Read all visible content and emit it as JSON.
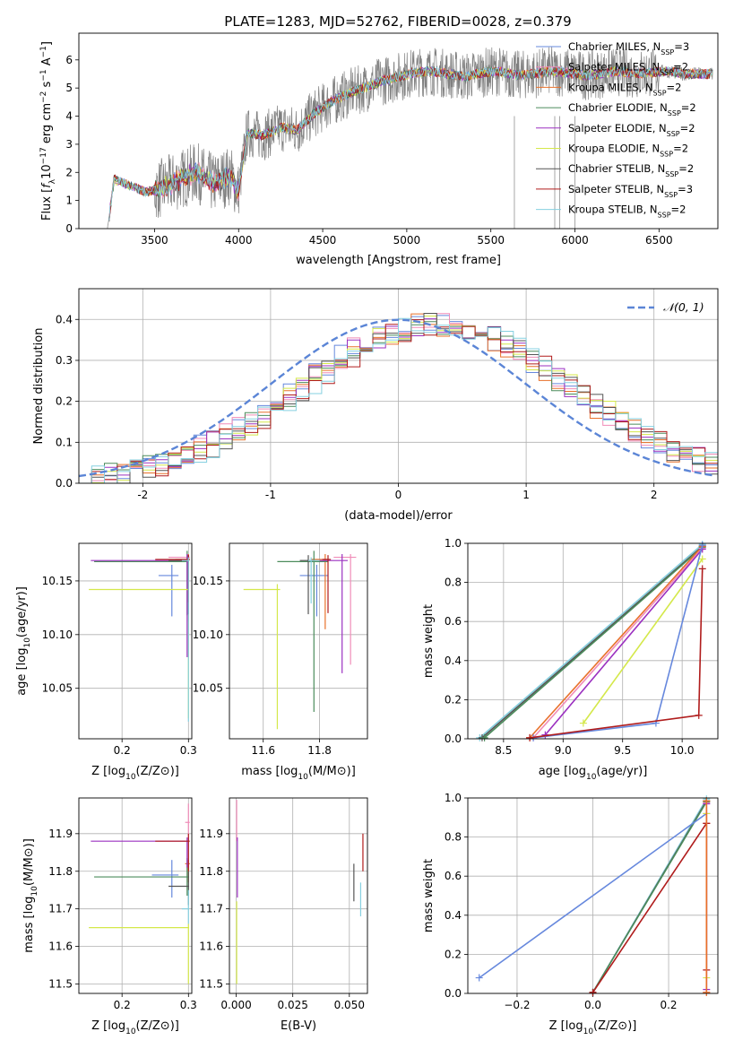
{
  "figure": {
    "title": "PLATE=1283, MJD=52762, FIBERID=0028, z=0.379"
  },
  "series_styles": [
    {
      "name": "Chabrier MILES, N_SSP=3",
      "label_main": "Chabrier MILES, N",
      "label_sub": "SSP",
      "label_tail": "=3",
      "color": "#6688dd"
    },
    {
      "name": "Salpeter MILES, N_SSP=2",
      "label_main": "Salpeter MILES, N",
      "label_sub": "SSP",
      "label_tail": "=2",
      "color": "#f08cb8"
    },
    {
      "name": "Kroupa MILES, N_SSP=2",
      "label_main": "Kroupa MILES, N",
      "label_sub": "SSP",
      "label_tail": "=2",
      "color": "#e8702a"
    },
    {
      "name": "Chabrier ELODIE, N_SSP=2",
      "label_main": "Chabrier ELODIE, N",
      "label_sub": "SSP",
      "label_tail": "=2",
      "color": "#4c8c5c"
    },
    {
      "name": "Salpeter ELODIE, N_SSP=2",
      "label_main": "Salpeter ELODIE, N",
      "label_sub": "SSP",
      "label_tail": "=2",
      "color": "#9b30c0"
    },
    {
      "name": "Kroupa ELODIE, N_SSP=2",
      "label_main": "Kroupa ELODIE, N",
      "label_sub": "SSP",
      "label_tail": "=2",
      "color": "#d4e84a"
    },
    {
      "name": "Chabrier STELIB, N_SSP=2",
      "label_main": "Chabrier STELIB, N",
      "label_sub": "SSP",
      "label_tail": "=2",
      "color": "#555555"
    },
    {
      "name": "Salpeter STELIB, N_SSP=3",
      "label_main": "Salpeter STELIB, N",
      "label_sub": "SSP",
      "label_tail": "=3",
      "color": "#b01c1c"
    },
    {
      "name": "Kroupa STELIB, N_SSP=2",
      "label_main": "Kroupa STELIB, N",
      "label_sub": "SSP",
      "label_tail": "=2",
      "color": "#86d0e0"
    }
  ],
  "chart_data": [
    {
      "id": "spectrum",
      "type": "line",
      "xlabel": "wavelength [Angstrom, rest frame]",
      "ylabel": "Flux [f_λ 10^-17 erg cm^-2 s^-1 A^-1]",
      "xlim": [
        3050,
        6850
      ],
      "ylim": [
        0,
        6.95
      ],
      "xticks": [
        3500,
        4000,
        4500,
        5000,
        5500,
        6000,
        6500
      ],
      "yticks": [
        0,
        1,
        2,
        3,
        4,
        5,
        6
      ],
      "legend_position": "top-right",
      "data_color": "#808080",
      "model_continuum": {
        "x": [
          3220,
          3260,
          3350,
          3450,
          3550,
          3650,
          3750,
          3850,
          3950,
          4000,
          4050,
          4150,
          4250,
          4350,
          4450,
          4550,
          4650,
          4750,
          4850,
          4950,
          5050,
          5150,
          5250,
          5350,
          5450,
          5550,
          5650,
          5750,
          5850,
          5950,
          6050,
          6150,
          6250,
          6350,
          6450,
          6550,
          6650,
          6800
        ],
        "y": [
          0.0,
          1.75,
          1.55,
          1.3,
          1.45,
          1.75,
          2.0,
          1.6,
          1.9,
          1.3,
          3.4,
          3.3,
          3.6,
          3.5,
          4.1,
          4.5,
          4.8,
          5.0,
          5.25,
          5.4,
          5.55,
          5.6,
          5.5,
          5.4,
          5.55,
          5.6,
          5.45,
          5.5,
          5.6,
          5.55,
          5.45,
          5.5,
          5.6,
          5.5,
          5.55,
          5.6,
          5.5,
          5.5
        ]
      },
      "data_noise_scale": 0.9,
      "noise_range": [
        3500,
        6500
      ],
      "gap_lines_x": [
        5640,
        5880,
        5910,
        6000
      ]
    },
    {
      "id": "residuals",
      "type": "histogram",
      "xlabel": "(data-model)/error",
      "ylabel": "Normed distribution",
      "xlim": [
        -2.5,
        2.5
      ],
      "ylim": [
        0,
        0.475
      ],
      "xticks": [
        -2,
        -1,
        0,
        1,
        2
      ],
      "yticks": [
        0.0,
        0.1,
        0.2,
        0.3,
        0.4
      ],
      "grid": true,
      "legend_position": "top-right",
      "reference_curve": {
        "label": "𝒩(0, 1)",
        "mean": 0,
        "sd": 1,
        "color": "#5b85d6"
      },
      "bin_width": 0.1,
      "bin_start": -2.5,
      "base_profile": [
        0.01,
        0.01,
        0.02,
        0.02,
        0.03,
        0.03,
        0.04,
        0.05,
        0.05,
        0.06,
        0.07,
        0.08,
        0.1,
        0.12,
        0.14,
        0.15,
        0.15,
        0.17,
        0.18,
        0.2,
        0.22,
        0.24,
        0.26,
        0.28,
        0.31,
        0.33,
        0.35,
        0.37,
        0.39,
        0.4,
        0.41,
        0.4,
        0.39,
        0.4,
        0.38,
        0.37,
        0.36,
        0.35,
        0.34,
        0.33,
        0.32,
        0.31,
        0.3,
        0.29,
        0.28,
        0.27,
        0.26,
        0.25,
        0.24,
        0.22,
        0.21,
        0.2,
        0.19,
        0.17,
        0.16,
        0.14,
        0.13,
        0.12,
        0.11,
        0.1,
        0.09,
        0.08,
        0.07,
        0.07,
        0.06,
        0.05,
        0.05,
        0.04,
        0.04,
        0.03,
        0.03,
        0.02,
        0.02,
        0.02,
        0.01,
        0.01,
        0.01,
        0.01,
        0.01,
        0.01,
        0.01,
        0.01,
        0.01,
        0.01,
        0.01,
        0.01,
        0.01,
        0.01,
        0.01,
        0.01,
        0.01,
        0.01,
        0.01,
        0.01,
        0.01,
        0.01,
        0.01,
        0.01,
        0.01,
        0.01
      ]
    },
    {
      "id": "age_vs_Z",
      "type": "errorbar",
      "xlabel": "Z [log10(Z/Z⊙)]",
      "ylabel": "age  [log10(age/yr)]",
      "xlim": [
        0.135,
        0.305
      ],
      "ylim": [
        10.003,
        10.185
      ],
      "xticks": [
        0.2,
        0.3
      ],
      "xtick_labels": [
        "0.2",
        "0.3"
      ],
      "yticks": [
        10.05,
        10.1,
        10.15
      ],
      "ytick_labels": [
        "10.05",
        "10.10",
        "10.15"
      ],
      "grid": true,
      "points": [
        {
          "s": 0,
          "x": 0.275,
          "y": 10.155,
          "xerr": [
            0.02,
            0.01
          ],
          "yerr": [
            0.038,
            0.01
          ]
        },
        {
          "s": 1,
          "x": 0.3,
          "y": 10.172,
          "xerr": [
            0.03,
            0.002
          ],
          "yerr": [
            0.06,
            0.003
          ]
        },
        {
          "s": 2,
          "x": 0.3,
          "y": 10.17,
          "xerr": [
            0.02,
            0.002
          ],
          "yerr": [
            0.02,
            0.005
          ]
        },
        {
          "s": 3,
          "x": 0.298,
          "y": 10.168,
          "xerr": [
            0.14,
            0.003
          ],
          "yerr": [
            0.05,
            0.01
          ]
        },
        {
          "s": 4,
          "x": 0.298,
          "y": 10.169,
          "xerr": [
            0.145,
            0.002
          ],
          "yerr": [
            0.09,
            0.006
          ]
        },
        {
          "s": 5,
          "x": 0.3,
          "y": 10.142,
          "xerr": [
            0.15,
            0.001
          ],
          "yerr": [
            0.12,
            0.005
          ]
        },
        {
          "s": 6,
          "x": 0.3,
          "y": 10.169,
          "xerr": [
            0.03,
            0.001
          ],
          "yerr": [
            0.05,
            0.005
          ]
        },
        {
          "s": 7,
          "x": 0.3,
          "y": 10.17,
          "xerr": [
            0.05,
            0.002
          ],
          "yerr": [
            0.04,
            0.004
          ]
        },
        {
          "s": 8,
          "x": 0.3,
          "y": 10.169,
          "xerr": [
            0.01,
            0.001
          ],
          "yerr": [
            0.15,
            0.003
          ]
        }
      ]
    },
    {
      "id": "age_vs_mass",
      "type": "errorbar",
      "xlabel": "mass [log10(M/M⊙)]",
      "ylabel": "",
      "xlim": [
        11.48,
        11.97
      ],
      "ylim": [
        10.003,
        10.185
      ],
      "xticks": [
        11.6,
        11.8
      ],
      "xtick_labels": [
        "11.6",
        "11.8"
      ],
      "yticks": [
        10.05,
        10.1,
        10.15
      ],
      "ytick_labels": [
        "10.05",
        "10.10",
        "10.15"
      ],
      "grid": true,
      "points": [
        {
          "s": 0,
          "x": 11.79,
          "y": 10.155,
          "xerr": [
            0.06,
            0.04
          ],
          "yerr": [
            0.038,
            0.01
          ]
        },
        {
          "s": 1,
          "x": 11.91,
          "y": 10.172,
          "xerr": [
            0.06,
            0.02
          ],
          "yerr": [
            0.1,
            0.003
          ]
        },
        {
          "s": 2,
          "x": 11.82,
          "y": 10.17,
          "xerr": [
            0.05,
            0.01
          ],
          "yerr": [
            0.065,
            0.005
          ]
        },
        {
          "s": 3,
          "x": 11.78,
          "y": 10.168,
          "xerr": [
            0.13,
            0.05
          ],
          "yerr": [
            0.14,
            0.01
          ]
        },
        {
          "s": 4,
          "x": 11.88,
          "y": 10.169,
          "xerr": [
            0.08,
            0.02
          ],
          "yerr": [
            0.105,
            0.006
          ]
        },
        {
          "s": 5,
          "x": 11.65,
          "y": 10.142,
          "xerr": [
            0.12,
            0.01
          ],
          "yerr": [
            0.13,
            0.005
          ]
        },
        {
          "s": 6,
          "x": 11.76,
          "y": 10.169,
          "xerr": [
            0.03,
            0.02
          ],
          "yerr": [
            0.05,
            0.005
          ]
        },
        {
          "s": 7,
          "x": 11.83,
          "y": 10.17,
          "xerr": [
            0.02,
            0.01
          ],
          "yerr": [
            0.05,
            0.004
          ]
        },
        {
          "s": 8,
          "x": 11.77,
          "y": 10.169,
          "xerr": [
            0.01,
            0.03
          ],
          "yerr": [
            0.04,
            0.003
          ]
        }
      ]
    },
    {
      "id": "weight_vs_age",
      "type": "line",
      "xlabel": "age  [log10(age/yr)]",
      "ylabel": "mass weight",
      "xlim": [
        8.2,
        10.3
      ],
      "ylim": [
        0,
        1.0
      ],
      "xticks": [
        8.5,
        9.0,
        9.5,
        10.0
      ],
      "xtick_labels": [
        "8.5",
        "9.0",
        "9.5",
        "10.0"
      ],
      "yticks": [
        0.0,
        0.2,
        0.4,
        0.6,
        0.8,
        1.0
      ],
      "ytick_labels": [
        "0.0",
        "0.2",
        "0.4",
        "0.6",
        "0.8",
        "1.0"
      ],
      "grid": true,
      "paths": [
        {
          "s": 8,
          "x": [
            10.17,
            8.3
          ],
          "y": [
            0.995,
            0.005
          ]
        },
        {
          "s": 6,
          "x": [
            10.17,
            8.32
          ],
          "y": [
            0.985,
            0.005
          ]
        },
        {
          "s": 3,
          "x": [
            10.17,
            8.34
          ],
          "y": [
            0.98,
            0.005
          ]
        },
        {
          "s": 2,
          "x": [
            10.17,
            8.72
          ],
          "y": [
            0.985,
            0.005
          ]
        },
        {
          "s": 1,
          "x": [
            10.17,
            8.75
          ],
          "y": [
            0.975,
            0.005
          ]
        },
        {
          "s": 4,
          "x": [
            10.17,
            8.85
          ],
          "y": [
            0.97,
            0.02
          ]
        },
        {
          "s": 5,
          "x": [
            10.17,
            9.17
          ],
          "y": [
            0.92,
            0.08
          ]
        },
        {
          "s": 0,
          "x": [
            10.17,
            9.78,
            8.75
          ],
          "y": [
            0.99,
            0.08,
            0.005
          ]
        },
        {
          "s": 7,
          "x": [
            10.17,
            10.14,
            8.72
          ],
          "y": [
            0.87,
            0.12,
            0.005
          ]
        }
      ]
    },
    {
      "id": "mass_vs_Z",
      "type": "errorbar",
      "xlabel": "Z [log10(Z/Z⊙)]",
      "ylabel": "mass [log10(M/M⊙)]",
      "xlim": [
        0.135,
        0.305
      ],
      "ylim": [
        11.475,
        11.995
      ],
      "xticks": [
        0.2,
        0.3
      ],
      "xtick_labels": [
        "0.2",
        "0.3"
      ],
      "yticks": [
        11.5,
        11.6,
        11.7,
        11.8,
        11.9
      ],
      "ytick_labels": [
        "11.5",
        "11.6",
        "11.7",
        "11.8",
        "11.9"
      ],
      "grid": true,
      "points": [
        {
          "s": 0,
          "x": 0.275,
          "y": 11.79,
          "xerr": [
            0.03,
            0.01
          ],
          "yerr": [
            0.06,
            0.04
          ]
        },
        {
          "s": 1,
          "x": 0.3,
          "y": 11.93,
          "xerr": [
            0.005,
            0.002
          ],
          "yerr": [
            0.05,
            0.05
          ]
        },
        {
          "s": 2,
          "x": 0.3,
          "y": 11.82,
          "xerr": [
            0.005,
            0.002
          ],
          "yerr": [
            0.05,
            0.01
          ]
        },
        {
          "s": 3,
          "x": 0.298,
          "y": 11.785,
          "xerr": [
            0.14,
            0.003
          ],
          "yerr": [
            0.05,
            0.05
          ]
        },
        {
          "s": 4,
          "x": 0.298,
          "y": 11.88,
          "xerr": [
            0.145,
            0.002
          ],
          "yerr": [
            0.07,
            0.01
          ]
        },
        {
          "s": 5,
          "x": 0.3,
          "y": 11.65,
          "xerr": [
            0.15,
            0.001
          ],
          "yerr": [
            0.15,
            0.01
          ]
        },
        {
          "s": 6,
          "x": 0.3,
          "y": 11.76,
          "xerr": [
            0.03,
            0.001
          ],
          "yerr": [
            0.05,
            0.04
          ]
        },
        {
          "s": 7,
          "x": 0.3,
          "y": 11.88,
          "xerr": [
            0.05,
            0.002
          ],
          "yerr": [
            0.08,
            0.02
          ]
        },
        {
          "s": 8,
          "x": 0.3,
          "y": 11.7,
          "xerr": [
            0.01,
            0.001
          ],
          "yerr": [
            0.04,
            0.05
          ]
        }
      ]
    },
    {
      "id": "mass_vs_ebv",
      "type": "errorbar",
      "xlabel": "E(B-V)",
      "ylabel": "",
      "xlim": [
        -0.003,
        0.058
      ],
      "ylim": [
        11.475,
        11.995
      ],
      "xticks": [
        0.0,
        0.025,
        0.05
      ],
      "xtick_labels": [
        "0.000",
        "0.025",
        "0.050"
      ],
      "yticks": [
        11.5,
        11.6,
        11.7,
        11.8,
        11.9
      ],
      "ytick_labels": [
        "11.5",
        "11.6",
        "11.7",
        "11.8",
        "11.9"
      ],
      "grid": true,
      "points": [
        {
          "s": 1,
          "x": 0.0002,
          "y": 11.93,
          "xerr": [
            0,
            0
          ],
          "yerr": [
            0.05,
            0.06
          ]
        },
        {
          "s": 4,
          "x": 0.0005,
          "y": 11.85,
          "xerr": [
            0,
            0
          ],
          "yerr": [
            0.12,
            0.04
          ]
        },
        {
          "s": 5,
          "x": 0.0002,
          "y": 11.62,
          "xerr": [
            0,
            0
          ],
          "yerr": [
            0.12,
            0.1
          ]
        },
        {
          "s": 6,
          "x": 0.052,
          "y": 11.77,
          "xerr": [
            0,
            0
          ],
          "yerr": [
            0.05,
            0.05
          ]
        },
        {
          "s": 7,
          "x": 0.056,
          "y": 11.85,
          "xerr": [
            0,
            0
          ],
          "yerr": [
            0.05,
            0.05
          ]
        },
        {
          "s": 8,
          "x": 0.055,
          "y": 11.72,
          "xerr": [
            0,
            0
          ],
          "yerr": [
            0.04,
            0.05
          ]
        }
      ]
    },
    {
      "id": "weight_vs_Z",
      "type": "line",
      "xlabel": "Z [log10(Z/Z⊙)]",
      "ylabel": "mass weight",
      "xlim": [
        -0.33,
        0.33
      ],
      "ylim": [
        0,
        1.0
      ],
      "xticks": [
        -0.2,
        0.0,
        0.2
      ],
      "xtick_labels": [
        "−0.2",
        "0.0",
        "0.2"
      ],
      "yticks": [
        0.0,
        0.2,
        0.4,
        0.6,
        0.8,
        1.0
      ],
      "ytick_labels": [
        "0.0",
        "0.2",
        "0.4",
        "0.6",
        "0.8",
        "1.0"
      ],
      "grid": true,
      "paths": [
        {
          "s": 8,
          "x": [
            0.3,
            0.0
          ],
          "y": [
            0.995,
            0.005
          ]
        },
        {
          "s": 6,
          "x": [
            0.3,
            0.0
          ],
          "y": [
            0.985,
            0.005
          ]
        },
        {
          "s": 3,
          "x": [
            0.3,
            0.0
          ],
          "y": [
            0.98,
            0.005
          ]
        },
        {
          "s": 0,
          "x": [
            0.3,
            -0.3
          ],
          "y": [
            0.92,
            0.08
          ]
        },
        {
          "s": 7,
          "x": [
            0.3,
            0.0
          ],
          "y": [
            0.87,
            0.005
          ]
        },
        {
          "s": 7,
          "x": [
            0.3,
            0.3
          ],
          "y": [
            0.87,
            0.12
          ]
        },
        {
          "s": 5,
          "x": [
            0.3,
            0.3
          ],
          "y": [
            0.92,
            0.08
          ]
        },
        {
          "s": 1,
          "x": [
            0.3,
            0.3
          ],
          "y": [
            0.975,
            0.005
          ]
        },
        {
          "s": 4,
          "x": [
            0.3,
            0.3
          ],
          "y": [
            0.97,
            0.02
          ]
        },
        {
          "s": 2,
          "x": [
            0.3,
            0.3
          ],
          "y": [
            0.985,
            0.005
          ]
        }
      ]
    }
  ]
}
